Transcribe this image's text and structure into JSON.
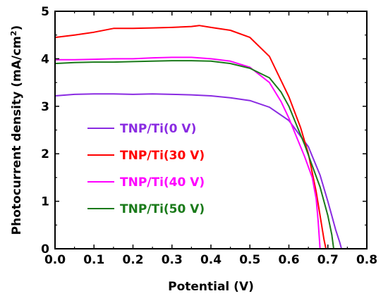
{
  "chart_data": {
    "type": "line",
    "xlabel": "Potential (V)",
    "ylabel_main": "Photocurrent density (mA/cm",
    "ylabel_sup": "2",
    "ylabel_close": ")",
    "xlim": [
      0.0,
      0.8
    ],
    "ylim": [
      0,
      5
    ],
    "xticks": [
      "0.0",
      "0.1",
      "0.2",
      "0.3",
      "0.4",
      "0.5",
      "0.6",
      "0.7",
      "0.8"
    ],
    "yticks": [
      "0",
      "1",
      "2",
      "3",
      "4",
      "5"
    ],
    "grid": false,
    "legend_position": "center-left",
    "series": [
      {
        "name": "TNP/Ti(0 V)",
        "color": "#8a2be2",
        "x": [
          0.0,
          0.05,
          0.1,
          0.15,
          0.2,
          0.25,
          0.3,
          0.35,
          0.4,
          0.45,
          0.5,
          0.55,
          0.6,
          0.65,
          0.68,
          0.7,
          0.71,
          0.72,
          0.73,
          0.735
        ],
        "y": [
          3.22,
          3.25,
          3.26,
          3.26,
          3.25,
          3.26,
          3.25,
          3.24,
          3.22,
          3.18,
          3.12,
          2.98,
          2.7,
          2.15,
          1.55,
          1.0,
          0.7,
          0.4,
          0.15,
          0.0
        ]
      },
      {
        "name": "TNP/Ti(30 V)",
        "color": "#ff0000",
        "x": [
          0.0,
          0.05,
          0.1,
          0.15,
          0.2,
          0.25,
          0.3,
          0.35,
          0.37,
          0.4,
          0.45,
          0.5,
          0.55,
          0.6,
          0.63,
          0.65,
          0.67,
          0.68,
          0.69,
          0.695
        ],
        "y": [
          4.45,
          4.5,
          4.56,
          4.64,
          4.64,
          4.65,
          4.66,
          4.68,
          4.7,
          4.66,
          4.6,
          4.45,
          4.05,
          3.2,
          2.55,
          2.0,
          1.2,
          0.7,
          0.2,
          0.0
        ]
      },
      {
        "name": "TNP/Ti(40 V)",
        "color": "#ff00ff",
        "x": [
          0.0,
          0.05,
          0.1,
          0.15,
          0.2,
          0.25,
          0.3,
          0.35,
          0.4,
          0.45,
          0.5,
          0.55,
          0.58,
          0.6,
          0.62,
          0.64,
          0.66,
          0.67,
          0.675,
          0.68
        ],
        "y": [
          3.98,
          3.98,
          3.99,
          4.0,
          4.0,
          4.02,
          4.03,
          4.03,
          4.0,
          3.95,
          3.82,
          3.5,
          3.1,
          2.75,
          2.35,
          1.95,
          1.5,
          1.05,
          0.6,
          0.0
        ]
      },
      {
        "name": "TNP/Ti(50 V)",
        "color": "#1a7a1a",
        "x": [
          0.0,
          0.05,
          0.1,
          0.15,
          0.2,
          0.25,
          0.3,
          0.35,
          0.4,
          0.45,
          0.5,
          0.55,
          0.58,
          0.6,
          0.62,
          0.64,
          0.66,
          0.68,
          0.7,
          0.71,
          0.715
        ],
        "y": [
          3.9,
          3.92,
          3.93,
          3.93,
          3.94,
          3.95,
          3.96,
          3.96,
          3.95,
          3.9,
          3.8,
          3.6,
          3.3,
          3.0,
          2.6,
          2.2,
          1.75,
          1.3,
          0.7,
          0.3,
          0.0
        ]
      }
    ]
  }
}
